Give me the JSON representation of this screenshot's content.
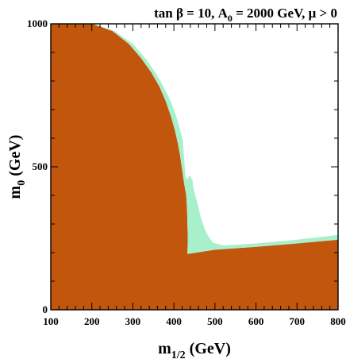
{
  "chart_data": {
    "type": "area",
    "title": "tan β = 10,  A₀ = 2000 GeV,  μ > 0",
    "title_parts": {
      "prefix": "tan β = 10,  A",
      "sub": "0",
      "suffix": " = 2000 GeV,  μ > 0"
    },
    "xlabel": {
      "base": "m",
      "sub": "1/2",
      "rest": " (GeV)"
    },
    "ylabel": {
      "base": "m",
      "sub": "0",
      "rest": " (GeV)"
    },
    "xlim": [
      100,
      800
    ],
    "ylim": [
      0,
      1000
    ],
    "x_ticks": [
      100,
      200,
      300,
      400,
      500,
      600,
      700,
      800
    ],
    "y_ticks": [
      0,
      500,
      1000
    ],
    "x_minor_step": 20,
    "y_minor_step": 100,
    "grid": false,
    "regions": [
      {
        "name": "",
        "color": "#c2560c",
        "boundary": [
          [
            100,
            0
          ],
          [
            100,
            1000
          ],
          [
            200,
            1000
          ],
          [
            250,
            975
          ],
          [
            290,
            930
          ],
          [
            320,
            880
          ],
          [
            345,
            830
          ],
          [
            365,
            780
          ],
          [
            380,
            730
          ],
          [
            392,
            680
          ],
          [
            402,
            630
          ],
          [
            410,
            580
          ],
          [
            415,
            540
          ],
          [
            420,
            490
          ],
          [
            425,
            440
          ],
          [
            430,
            400
          ],
          [
            432,
            350
          ],
          [
            433,
            300
          ],
          [
            434,
            250
          ],
          [
            433,
            195
          ],
          [
            500,
            210
          ],
          [
            600,
            220
          ],
          [
            700,
            232
          ],
          [
            800,
            245
          ],
          [
            800,
            0
          ]
        ]
      },
      {
        "name": "",
        "color": "#a8f0cc",
        "boundary": [
          [
            185,
            1000
          ],
          [
            205,
            1000
          ],
          [
            255,
            975
          ],
          [
            300,
            930
          ],
          [
            330,
            880
          ],
          [
            355,
            830
          ],
          [
            375,
            780
          ],
          [
            392,
            730
          ],
          [
            405,
            680
          ],
          [
            415,
            630
          ],
          [
            422,
            590
          ],
          [
            428,
            470
          ],
          [
            432,
            455
          ],
          [
            438,
            470
          ],
          [
            445,
            455
          ],
          [
            448,
            420
          ],
          [
            456,
            380
          ],
          [
            466,
            320
          ],
          [
            476,
            280
          ],
          [
            485,
            255
          ],
          [
            495,
            235
          ],
          [
            520,
            225
          ],
          [
            600,
            232
          ],
          [
            700,
            245
          ],
          [
            800,
            262
          ],
          [
            800,
            245
          ],
          [
            700,
            232
          ],
          [
            600,
            220
          ],
          [
            500,
            210
          ],
          [
            433,
            195
          ],
          [
            434,
            250
          ],
          [
            433,
            300
          ],
          [
            432,
            350
          ],
          [
            430,
            400
          ],
          [
            425,
            440
          ],
          [
            420,
            490
          ],
          [
            415,
            540
          ],
          [
            410,
            580
          ],
          [
            402,
            630
          ],
          [
            392,
            680
          ],
          [
            380,
            730
          ],
          [
            365,
            780
          ],
          [
            345,
            830
          ],
          [
            320,
            880
          ],
          [
            290,
            930
          ],
          [
            250,
            975
          ],
          [
            200,
            1000
          ]
        ]
      }
    ]
  }
}
